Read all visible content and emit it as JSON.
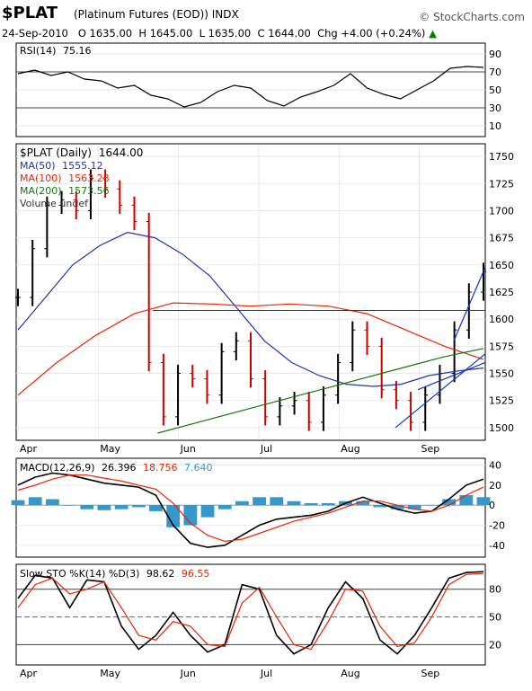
{
  "header": {
    "symbol": "$PLAT",
    "name": "(Platinum Futures (EOD)) INDX",
    "brand": "© StockCharts.com",
    "date": "24-Sep-2010",
    "open": "O 1635.00",
    "high": "H 1645.00",
    "low": "L 1635.00",
    "close": "C 1644.00",
    "chg": "Chg +4.00 (+0.24%)",
    "chg_arrow": "▲"
  },
  "colors": {
    "price_up": "#000000",
    "price_down": "#cc0000",
    "ma50": "#2233aa",
    "ma100": "#ee2200",
    "ma200": "#117711",
    "trend": "#1133cc",
    "macd_line": "#000000",
    "signal_line": "#ee2200",
    "histogram": "#3399cc",
    "sto_k": "#000000",
    "sto_d": "#ee2200"
  },
  "chart_data": [
    {
      "type": "line",
      "title": "RSI(14) 75.16",
      "label": "RSI(14)",
      "value": "75.16",
      "ylim": [
        0,
        100
      ],
      "yticks": [
        10,
        30,
        50,
        70,
        90
      ],
      "reference_lines": [
        30,
        70
      ],
      "x": [
        "Apr",
        "Apr",
        "Apr",
        "Apr",
        "Apr",
        "May",
        "May",
        "May",
        "May",
        "May",
        "Jun",
        "Jun",
        "Jun",
        "Jun",
        "Jun",
        "Jul",
        "Jul",
        "Jul",
        "Jul",
        "Jul",
        "Aug",
        "Aug",
        "Aug",
        "Aug",
        "Aug",
        "Sep",
        "Sep",
        "Sep",
        "Sep"
      ],
      "values": [
        68,
        72,
        66,
        70,
        62,
        60,
        52,
        55,
        44,
        40,
        31,
        36,
        48,
        55,
        52,
        38,
        32,
        42,
        48,
        55,
        68,
        52,
        45,
        40,
        50,
        60,
        74,
        76,
        75
      ]
    },
    {
      "type": "line",
      "title": "$PLAT (Daily) 1644.00",
      "label": "$PLAT (Daily)",
      "value": "1644.00",
      "ylim": [
        1490,
        1760
      ],
      "yticks": [
        1500,
        1525,
        1550,
        1575,
        1600,
        1625,
        1650,
        1675,
        1700,
        1725,
        1750
      ],
      "xticks": [
        "Apr",
        "May",
        "Jun",
        "Jul",
        "Aug",
        "Sep"
      ],
      "legend": [
        {
          "name": "MA(50)",
          "value": "1555.12"
        },
        {
          "name": "MA(100)",
          "value": "1563.28"
        },
        {
          "name": "MA(200)",
          "value": "1573.56"
        },
        {
          "name": "Volume undef",
          "value": ""
        }
      ],
      "price": [
        1620,
        1665,
        1705,
        1710,
        1700,
        1730,
        1720,
        1705,
        1690,
        1560,
        1510,
        1550,
        1545,
        1530,
        1570,
        1580,
        1545,
        1510,
        1520,
        1525,
        1505,
        1530,
        1560,
        1590,
        1575,
        1535,
        1525,
        1505,
        1530,
        1550,
        1590,
        1625,
        1644
      ],
      "series": [
        {
          "name": "MA(50)",
          "values": [
            1590,
            1620,
            1650,
            1668,
            1680,
            1675,
            1660,
            1640,
            1610,
            1580,
            1560,
            1548,
            1540,
            1538,
            1540,
            1548,
            1552,
            1555
          ]
        },
        {
          "name": "MA(100)",
          "values": [
            1530,
            1560,
            1585,
            1605,
            1615,
            1614,
            1612,
            1614,
            1612,
            1605,
            1590,
            1575,
            1563
          ]
        },
        {
          "name": "MA(200)",
          "values": [
            1495,
            1505,
            1515,
            1525,
            1535,
            1545,
            1555,
            1565,
            1573
          ]
        }
      ],
      "resistance": 1608
    },
    {
      "type": "line",
      "title": "MACD(12,26,9) 26.396, 18.756, 7.640",
      "label": "MACD(12,26,9)",
      "macd": "26.396",
      "signal": "18.756",
      "hist": "7.640",
      "ylim": [
        -50,
        45
      ],
      "yticks": [
        -40,
        -20,
        0,
        20,
        40
      ],
      "macd_values": [
        20,
        28,
        32,
        30,
        26,
        22,
        20,
        18,
        10,
        -20,
        -38,
        -42,
        -40,
        -30,
        -20,
        -14,
        -12,
        -10,
        -6,
        2,
        8,
        2,
        -4,
        -8,
        -6,
        6,
        20,
        26
      ],
      "signal_values": [
        15,
        20,
        26,
        30,
        30,
        27,
        24,
        20,
        16,
        2,
        -18,
        -30,
        -36,
        -34,
        -28,
        -22,
        -16,
        -12,
        -8,
        -2,
        4,
        4,
        0,
        -4,
        -6,
        0,
        10,
        18
      ],
      "hist_values": [
        5,
        8,
        6,
        0,
        -4,
        -5,
        -4,
        -2,
        -6,
        -22,
        -20,
        -12,
        -4,
        4,
        8,
        8,
        4,
        2,
        2,
        4,
        4,
        -2,
        -4,
        -4,
        0,
        6,
        10,
        8
      ]
    },
    {
      "type": "line",
      "title": "Slow STO %K(14) %D(3) 98.62, 96.55",
      "label": "Slow STO %K(14) %D(3)",
      "k": "98.62",
      "d": "96.55",
      "ylim": [
        0,
        105
      ],
      "yticks": [
        20,
        50,
        80
      ],
      "k_values": [
        70,
        95,
        92,
        60,
        90,
        88,
        40,
        15,
        30,
        55,
        30,
        12,
        20,
        85,
        80,
        30,
        10,
        20,
        60,
        88,
        70,
        25,
        10,
        30,
        60,
        92,
        98,
        99
      ],
      "d_values": [
        60,
        85,
        92,
        75,
        80,
        88,
        60,
        30,
        25,
        45,
        40,
        20,
        18,
        65,
        82,
        50,
        20,
        15,
        45,
        80,
        78,
        40,
        18,
        22,
        50,
        85,
        96,
        97
      ]
    }
  ],
  "xaxis": [
    "Apr",
    "May",
    "Jun",
    "Jul",
    "Aug",
    "Sep"
  ]
}
